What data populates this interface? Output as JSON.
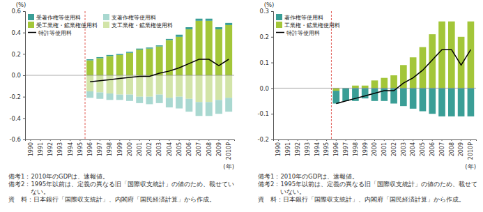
{
  "chart_data": [
    {
      "type": "bar",
      "stacked": true,
      "grid": false,
      "legend": "upper left",
      "y_label": "(%)",
      "x_label": "(年)",
      "categories": [
        "1990",
        "1991",
        "1992",
        "1993",
        "1994",
        "1995",
        "1996",
        "1997",
        "1998",
        "1999",
        "2000",
        "2001",
        "2002",
        "2003",
        "2004",
        "2005",
        "2006",
        "2007",
        "2008",
        "2009",
        "2010P"
      ],
      "ylim": [
        -0.6,
        0.6
      ],
      "yticks": [
        -0.6,
        -0.4,
        -0.2,
        {
          "value": 0,
          "label": "0.0"
        },
        0.2,
        0.4,
        0.6
      ],
      "series": [
        {
          "name": "受著作権等使用料",
          "type": "bar",
          "color": "#3a9e96",
          "values": [
            null,
            null,
            null,
            null,
            null,
            null,
            0.01,
            0.01,
            0.01,
            0.01,
            0.01,
            0.01,
            0.01,
            0.01,
            0.01,
            0.02,
            0.02,
            0.02,
            0.02,
            0.02,
            0.02
          ]
        },
        {
          "name": "支著作権等使用料",
          "type": "bar",
          "color": "#a9d8d0",
          "values": [
            null,
            null,
            null,
            null,
            null,
            null,
            -0.06,
            -0.06,
            -0.06,
            -0.05,
            -0.06,
            -0.06,
            -0.07,
            -0.08,
            -0.09,
            -0.11,
            -0.12,
            -0.13,
            -0.13,
            -0.13,
            -0.13
          ]
        },
        {
          "name": "受工業権・鉱業権使用料",
          "type": "bar",
          "color": "#a3c639",
          "values": [
            null,
            null,
            null,
            null,
            null,
            null,
            0.14,
            0.16,
            0.18,
            0.19,
            0.21,
            0.24,
            0.25,
            0.27,
            0.33,
            0.36,
            0.43,
            0.51,
            0.51,
            0.43,
            0.47
          ]
        },
        {
          "name": "支工業権・鉱業権使用料",
          "type": "bar",
          "color": "#d2e4a8",
          "values": [
            null,
            null,
            null,
            null,
            null,
            null,
            -0.15,
            -0.16,
            -0.17,
            -0.18,
            -0.18,
            -0.2,
            -0.2,
            -0.18,
            -0.21,
            -0.2,
            -0.22,
            -0.25,
            -0.25,
            -0.23,
            -0.21
          ]
        },
        {
          "name": "特許等使用料",
          "type": "line",
          "color": "#000000",
          "line_style": "solid",
          "values": [
            null,
            null,
            null,
            null,
            null,
            null,
            -0.06,
            -0.05,
            -0.04,
            -0.03,
            -0.02,
            -0.01,
            -0.01,
            0.02,
            0.04,
            0.07,
            0.11,
            0.15,
            0.15,
            0.09,
            0.15
          ]
        }
      ],
      "notes": [
        {
          "label": "備考1：",
          "text": "2010年のGDPは、速報値。"
        },
        {
          "label": "備考2：",
          "text": "1995年以前は、定義の異なる旧「国際収支統計」の値のため、載せていない。"
        },
        {
          "label": "資　料：",
          "text": "日本銀行「国際収支統計」、内閣府「国民経済計算」から作成。"
        }
      ]
    },
    {
      "type": "bar",
      "stacked": true,
      "grid": false,
      "legend": "upper left",
      "y_label": "(%)",
      "x_label": "(年)",
      "categories": [
        "1990",
        "1991",
        "1992",
        "1993",
        "1994",
        "1995",
        "1996",
        "1997",
        "1998",
        "1999",
        "2000",
        "2001",
        "2002",
        "2003",
        "2004",
        "2005",
        "2006",
        "2007",
        "2008",
        "2009",
        "2010P"
      ],
      "ylim": [
        -0.2,
        0.3
      ],
      "yticks": [
        -0.2,
        -0.1,
        {
          "value": 0,
          "label": "0.0"
        },
        0.1,
        0.2,
        0.3
      ],
      "series": [
        {
          "name": "著作権等使用料",
          "type": "bar",
          "color": "#3a9e96",
          "values": [
            null,
            null,
            null,
            null,
            null,
            null,
            -0.05,
            -0.05,
            -0.05,
            -0.04,
            -0.05,
            -0.05,
            -0.06,
            -0.07,
            -0.08,
            -0.09,
            -0.1,
            -0.11,
            -0.11,
            -0.11,
            -0.11
          ]
        },
        {
          "name": "工業権・鉱業権使用料",
          "type": "bar",
          "color": "#a3c639",
          "values": [
            null,
            null,
            null,
            null,
            null,
            null,
            -0.01,
            0,
            0.01,
            0.01,
            0.03,
            0.04,
            0.05,
            0.09,
            0.12,
            0.16,
            0.21,
            0.26,
            0.26,
            0.2,
            0.26
          ]
        },
        {
          "name": "特許等使用料",
          "type": "line",
          "color": "#000000",
          "line_style": "solid",
          "values": [
            null,
            null,
            null,
            null,
            null,
            null,
            -0.06,
            -0.05,
            -0.04,
            -0.03,
            -0.02,
            -0.01,
            -0.01,
            0.02,
            0.04,
            0.07,
            0.11,
            0.15,
            0.15,
            0.09,
            0.15
          ]
        }
      ],
      "notes": [
        {
          "label": "備考1：",
          "text": "2010年のGDPは、速報値。"
        },
        {
          "label": "備考2：",
          "text": "1995年以前は、定義の異なる旧「国際収支統計」の値のため、載せていない。"
        },
        {
          "label": "資　料：",
          "text": "日本銀行「国際収支統計」、内閣府「国民経済計算」から作成。"
        }
      ]
    }
  ]
}
